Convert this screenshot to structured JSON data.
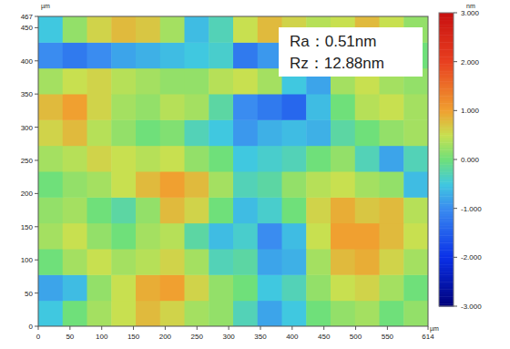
{
  "chart_data": {
    "type": "heatmap",
    "x_label": "µm",
    "y_label": "µm",
    "xlim": [
      0,
      614
    ],
    "ylim": [
      0,
      467
    ],
    "xticks": [
      0,
      50,
      100,
      150,
      200,
      250,
      300,
      350,
      400,
      450,
      500,
      550,
      614
    ],
    "yticks": [
      0,
      50,
      100,
      150,
      200,
      250,
      300,
      350,
      400,
      450,
      467
    ],
    "annotations": [
      "Ra：0.51nm",
      "Rz：12.88nm"
    ],
    "colorbar": {
      "label": "nm",
      "range": [
        -3,
        3
      ],
      "ticks": [
        {
          "value": 3,
          "label": "3.000"
        },
        {
          "value": 2,
          "label": "2.000"
        },
        {
          "value": 1,
          "label": "1.000"
        },
        {
          "value": 0,
          "label": "0.000"
        },
        {
          "value": -1,
          "label": "-1.000"
        },
        {
          "value": -2,
          "label": "-2.000"
        },
        {
          "value": -3,
          "label": "-3.000"
        }
      ]
    },
    "cells": [
      [
        -0.5,
        0,
        0.3,
        0.5,
        0.8,
        0.6,
        0.3,
        0.2,
        -0.3,
        -0.8,
        -0.5,
        0,
        0.2,
        0.3,
        0,
        0.2
      ],
      [
        -0.8,
        -0.6,
        0.2,
        0.5,
        0.9,
        1.0,
        0.6,
        0.2,
        0,
        -0.5,
        -0.3,
        0.2,
        0.5,
        0.6,
        0.3,
        0
      ],
      [
        0,
        0.3,
        0.5,
        0.3,
        0.4,
        0.6,
        0.3,
        -0.3,
        -0.2,
        -0.8,
        -0.7,
        0.3,
        0.8,
        0.9,
        0.6,
        0.3
      ],
      [
        0.3,
        0.5,
        0.2,
        0,
        0.3,
        0.4,
        -0.2,
        -0.6,
        -0.4,
        -1.0,
        -0.6,
        0.5,
        1.0,
        1.0,
        0.8,
        0.5
      ],
      [
        0.2,
        0.3,
        0,
        -0.2,
        0.2,
        0.8,
        0.6,
        0,
        -0.6,
        -0.4,
        0,
        0.6,
        0.9,
        0.7,
        0.8,
        0.4
      ],
      [
        0,
        0.2,
        0.3,
        0.5,
        0.8,
        1.0,
        0.8,
        0.3,
        -0.3,
        -0.2,
        0.2,
        0.4,
        0.5,
        0.3,
        0.2,
        -0.6
      ],
      [
        0.3,
        0.4,
        0.6,
        0.5,
        0.4,
        0.5,
        0.2,
        0,
        -0.5,
        -0.4,
        -0.3,
        0,
        0.2,
        -0.3,
        -0.8,
        -0.3
      ],
      [
        0.6,
        0.8,
        0.4,
        0.2,
        0,
        0.1,
        -0.3,
        -0.5,
        -0.9,
        -0.7,
        -0.6,
        -0.7,
        -0.2,
        0,
        0.2,
        0.3
      ],
      [
        0.8,
        1.0,
        0.6,
        0.3,
        0.2,
        0.4,
        0.3,
        -0.2,
        -1.0,
        -1.2,
        -1.4,
        -0.6,
        0,
        0.4,
        0.5,
        0.3
      ],
      [
        0.3,
        0.5,
        0.6,
        0.4,
        0.3,
        0.2,
        0.2,
        0.4,
        0.5,
        0.3,
        -0.5,
        -0.8,
        0.3,
        0.5,
        0.3,
        0.2
      ],
      [
        -1.0,
        -1.2,
        -1.0,
        -0.8,
        -0.7,
        -0.6,
        -0.5,
        -0.4,
        -1.2,
        -0.9,
        -0.4,
        -0.3,
        -0.2,
        -0.3,
        -0.1,
        0
      ],
      [
        -0.5,
        0.2,
        0.6,
        0.8,
        0.7,
        0.3,
        -0.6,
        -0.3,
        0.5,
        0.8,
        0.6,
        0.4,
        0.5,
        0.8,
        0.5,
        0.2
      ]
    ]
  }
}
